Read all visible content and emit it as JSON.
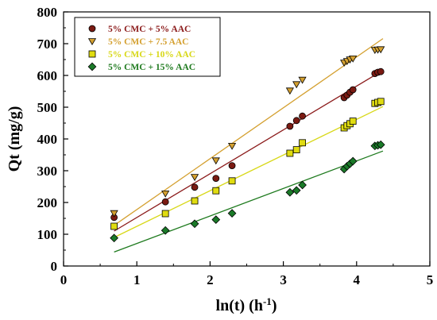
{
  "chart_data": {
    "type": "scatter",
    "xlabel": "ln(t) (h",
    "xlabel_sup": "-1",
    "xlabel_end": ")",
    "ylabel": "Qt (mg/g)",
    "xlim": [
      0,
      5
    ],
    "ylim": [
      0,
      800
    ],
    "x_ticks": [
      0,
      1,
      2,
      3,
      4,
      5
    ],
    "y_ticks": [
      0,
      100,
      200,
      300,
      400,
      500,
      600,
      700,
      800
    ],
    "grid": false,
    "legend_position": "top-left",
    "series": [
      {
        "name": "5% CMC + 5% AAC",
        "marker": "circle",
        "color": "#7a1a12",
        "line_color": "#8b1a1a",
        "x": [
          0.69,
          1.39,
          1.79,
          2.08,
          2.3,
          3.09,
          3.18,
          3.26,
          3.83,
          3.87,
          3.91,
          3.95,
          4.25,
          4.29,
          4.33
        ],
        "y": [
          153,
          202,
          248,
          276,
          316,
          440,
          458,
          472,
          530,
          538,
          547,
          555,
          606,
          610,
          612
        ],
        "fit_x": [
          0.69,
          4.36
        ],
        "fit_y": [
          110,
          616
        ]
      },
      {
        "name": "5% CMC + 7.5 AAC",
        "marker": "triangle-down",
        "color": "#d4a030",
        "line_color": "#d4a030",
        "x": [
          0.69,
          1.39,
          1.79,
          2.08,
          2.3,
          3.09,
          3.18,
          3.26,
          3.83,
          3.87,
          3.91,
          3.95,
          4.25,
          4.29,
          4.33
        ],
        "y": [
          166,
          228,
          280,
          332,
          378,
          552,
          572,
          586,
          640,
          645,
          650,
          653,
          680,
          681,
          682
        ],
        "fit_x": [
          0.69,
          4.36
        ],
        "fit_y": [
          128,
          716
        ]
      },
      {
        "name": "5% CMC + 10% AAC",
        "marker": "square",
        "color": "#e0dc10",
        "line_color": "#d8d818",
        "x": [
          0.69,
          1.39,
          1.79,
          2.08,
          2.3,
          3.09,
          3.18,
          3.26,
          3.83,
          3.87,
          3.91,
          3.95,
          4.25,
          4.29,
          4.33
        ],
        "y": [
          125,
          165,
          205,
          237,
          268,
          355,
          366,
          388,
          435,
          442,
          448,
          456,
          512,
          515,
          518
        ],
        "fit_x": [
          0.69,
          4.36
        ],
        "fit_y": [
          90,
          502
        ]
      },
      {
        "name": "5% CMC + 15% AAC",
        "marker": "diamond",
        "color": "#1a7a28",
        "line_color": "#1e7a1e",
        "x": [
          0.69,
          1.39,
          1.79,
          2.08,
          2.3,
          3.09,
          3.18,
          3.26,
          3.83,
          3.87,
          3.91,
          3.95,
          4.25,
          4.29,
          4.33
        ],
        "y": [
          88,
          112,
          133,
          146,
          166,
          232,
          238,
          255,
          305,
          314,
          322,
          330,
          378,
          380,
          382
        ],
        "fit_x": [
          0.69,
          4.36
        ],
        "fit_y": [
          44,
          362
        ]
      }
    ]
  }
}
